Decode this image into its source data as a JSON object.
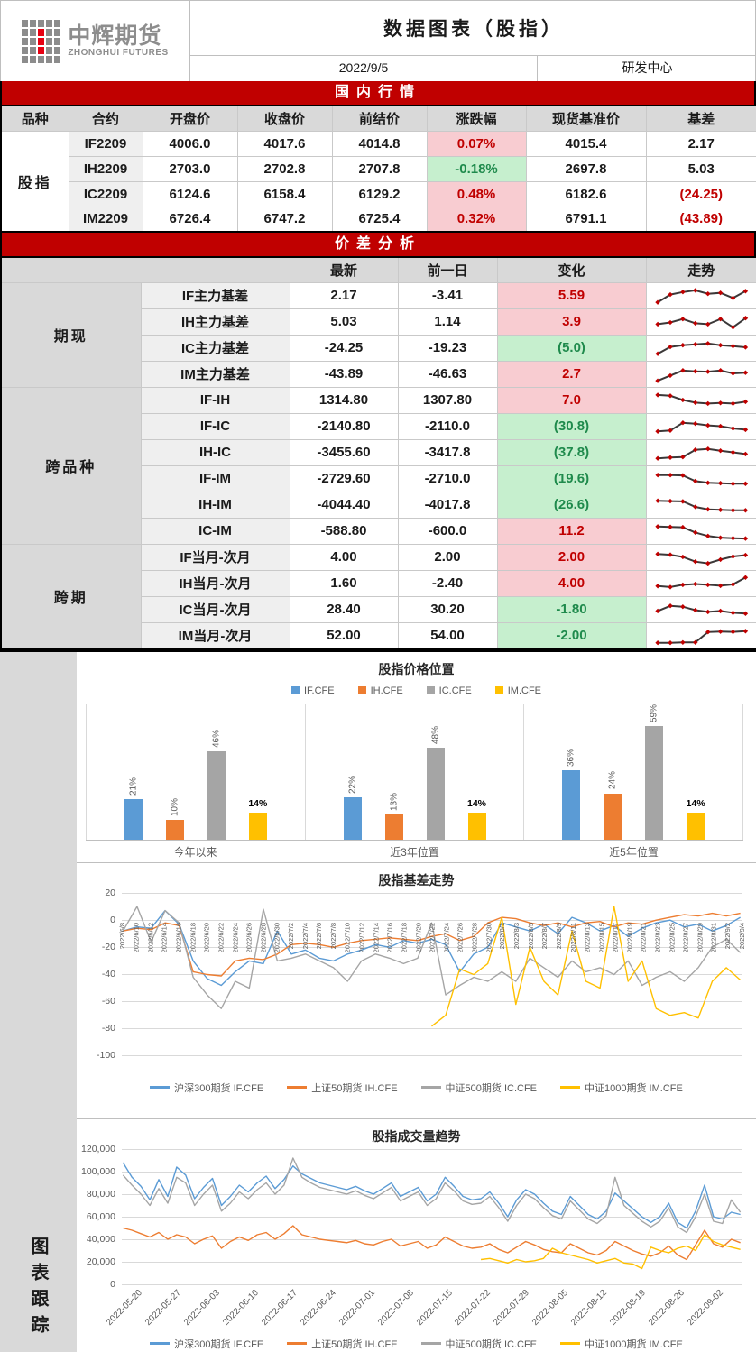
{
  "header": {
    "logo_cn": "中辉期货",
    "logo_en": "ZHONGHUI FUTURES",
    "title": "数据图表（股指）",
    "date": "2022/9/5",
    "dept": "研发中心"
  },
  "market_section": {
    "banner": "国内行情",
    "columns": [
      "品种",
      "合约",
      "开盘价",
      "收盘价",
      "前结价",
      "涨跌幅",
      "现货基准价",
      "基差"
    ],
    "group_label": "股指",
    "rows": [
      {
        "contract": "IF2209",
        "open": "4006.0",
        "close": "4017.6",
        "prev_settle": "4014.8",
        "change_pct": "0.07%",
        "change_dir": "up",
        "spot": "4015.4",
        "basis": "2.17",
        "basis_neg": false
      },
      {
        "contract": "IH2209",
        "open": "2703.0",
        "close": "2702.8",
        "prev_settle": "2707.8",
        "change_pct": "-0.18%",
        "change_dir": "down",
        "spot": "2697.8",
        "basis": "5.03",
        "basis_neg": false
      },
      {
        "contract": "IC2209",
        "open": "6124.6",
        "close": "6158.4",
        "prev_settle": "6129.2",
        "change_pct": "0.48%",
        "change_dir": "up",
        "spot": "6182.6",
        "basis": "(24.25)",
        "basis_neg": true
      },
      {
        "contract": "IM2209",
        "open": "6726.4",
        "close": "6747.2",
        "prev_settle": "6725.4",
        "change_pct": "0.32%",
        "change_dir": "up",
        "spot": "6791.1",
        "basis": "(43.89)",
        "basis_neg": true
      }
    ]
  },
  "spread_section": {
    "banner": "价差分析",
    "columns": [
      "最新",
      "前一日",
      "变化",
      "走势"
    ],
    "groups": [
      {
        "name": "期现",
        "rows": [
          {
            "label": "IF主力基差",
            "latest": "2.17",
            "prev": "-3.41",
            "change": "5.59",
            "dir": "up",
            "spark": [
              15,
              60,
              75,
              85,
              65,
              70,
              40,
              80
            ]
          },
          {
            "label": "IH主力基差",
            "latest": "5.03",
            "prev": "1.14",
            "change": "3.9",
            "dir": "up",
            "spark": [
              40,
              50,
              70,
              45,
              40,
              70,
              22,
              75
            ]
          },
          {
            "label": "IC主力基差",
            "latest": "-24.25",
            "prev": "-19.23",
            "change": "(5.0)",
            "dir": "down",
            "spark": [
              20,
              60,
              70,
              75,
              80,
              70,
              65,
              58
            ]
          },
          {
            "label": "IM主力基差",
            "latest": "-43.89",
            "prev": "-46.63",
            "change": "2.7",
            "dir": "up",
            "spark": [
              15,
              45,
              75,
              70,
              68,
              75,
              58,
              62
            ]
          }
        ]
      },
      {
        "name": "跨品种",
        "rows": [
          {
            "label": "IF-IH",
            "latest": "1314.80",
            "prev": "1307.80",
            "change": "7.0",
            "dir": "up",
            "spark": [
              85,
              80,
              55,
              40,
              35,
              38,
              35,
              45
            ]
          },
          {
            "label": "IF-IC",
            "latest": "-2140.80",
            "prev": "-2110.0",
            "change": "(30.8)",
            "dir": "down",
            "spark": [
              25,
              30,
              75,
              70,
              60,
              55,
              42,
              35
            ]
          },
          {
            "label": "IH-IC",
            "latest": "-3455.60",
            "prev": "-3417.8",
            "change": "(37.8)",
            "dir": "down",
            "spark": [
              20,
              25,
              28,
              70,
              75,
              65,
              55,
              45
            ]
          },
          {
            "label": "IF-IM",
            "latest": "-2729.60",
            "prev": "-2710.0",
            "change": "(19.6)",
            "dir": "down",
            "spark": [
              75,
              75,
              73,
              40,
              30,
              28,
              25,
              25
            ]
          },
          {
            "label": "IH-IM",
            "latest": "-4044.40",
            "prev": "-4017.8",
            "change": "(26.6)",
            "dir": "down",
            "spark": [
              78,
              76,
              74,
              42,
              28,
              25,
              22,
              22
            ]
          },
          {
            "label": "IC-IM",
            "latest": "-588.80",
            "prev": "-600.0",
            "change": "11.2",
            "dir": "up",
            "spark": [
              80,
              78,
              76,
              45,
              25,
              15,
              12,
              10
            ]
          }
        ]
      },
      {
        "name": "跨期",
        "rows": [
          {
            "label": "IF当月-次月",
            "latest": "4.00",
            "prev": "2.00",
            "change": "2.00",
            "dir": "up",
            "spark": [
              72,
              68,
              55,
              28,
              18,
              40,
              58,
              66
            ]
          },
          {
            "label": "IH当月-次月",
            "latest": "1.60",
            "prev": "-2.40",
            "change": "4.00",
            "dir": "up",
            "spark": [
              38,
              32,
              45,
              50,
              45,
              40,
              48,
              88
            ]
          },
          {
            "label": "IC当月-次月",
            "latest": "28.40",
            "prev": "30.20",
            "change": "-1.80",
            "dir": "down",
            "spark": [
              45,
              75,
              70,
              50,
              40,
              45,
              35,
              30
            ]
          },
          {
            "label": "IM当月-次月",
            "latest": "52.00",
            "prev": "54.00",
            "change": "-2.00",
            "dir": "down",
            "spark": [
              12,
              12,
              14,
              14,
              75,
              78,
              76,
              80
            ]
          }
        ]
      }
    ]
  },
  "charts_sidebar": "图表跟踪",
  "colors": {
    "banner_bg": "#C00000",
    "up_bg": "#F8CCD1",
    "up_text": "#C00000",
    "down_bg": "#C6EFCE",
    "down_text": "#1F8A4C",
    "header_bg": "#D9D9D9",
    "label_bg": "#EFEFEF",
    "spark_line": "#3B3838",
    "spark_marker": "#C00000",
    "series_blue": "#5B9BD5",
    "series_orange": "#ED7D31",
    "series_gray": "#A5A5A5",
    "series_yellow": "#FFC000"
  },
  "chart_data": [
    {
      "type": "bar",
      "title": "股指价格位置",
      "categories": [
        "今年以来",
        "近3年位置",
        "近5年位置"
      ],
      "series": [
        {
          "name": "IF.CFE",
          "color": "#5B9BD5",
          "values": [
            21,
            22,
            36
          ],
          "label_rotated": true
        },
        {
          "name": "IH.CFE",
          "color": "#ED7D31",
          "values": [
            10,
            13,
            24
          ],
          "label_rotated": true
        },
        {
          "name": "IC.CFE",
          "color": "#A5A5A5",
          "values": [
            46,
            48,
            59
          ],
          "label_rotated": true
        },
        {
          "name": "IM.CFE",
          "color": "#FFC000",
          "values": [
            14,
            14,
            14
          ],
          "label_rotated": false
        }
      ],
      "value_format": "percent",
      "ylim": [
        0,
        65
      ],
      "grid": "panel-separators",
      "legend_position": "top"
    },
    {
      "type": "line",
      "title": "股指基差走势",
      "x": [
        "2022/6/8",
        "2022/6/10",
        "2022/6/12",
        "2022/6/14",
        "2022/6/16",
        "2022/6/18",
        "2022/6/20",
        "2022/6/22",
        "2022/6/24",
        "2022/6/26",
        "2022/6/28",
        "2022/6/30",
        "2022/7/2",
        "2022/7/4",
        "2022/7/6",
        "2022/7/8",
        "2022/7/10",
        "2022/7/12",
        "2022/7/14",
        "2022/7/16",
        "2022/7/18",
        "2022/7/20",
        "2022/7/22",
        "2022/7/24",
        "2022/7/26",
        "2022/7/28",
        "2022/7/30",
        "2022/8/1",
        "2022/8/3",
        "2022/8/5",
        "2022/8/7",
        "2022/8/9",
        "2022/8/11",
        "2022/8/13",
        "2022/8/15",
        "2022/8/17",
        "2022/8/19",
        "2022/8/21",
        "2022/8/23",
        "2022/8/25",
        "2022/8/27",
        "2022/8/29",
        "2022/8/31",
        "2022/9/2",
        "2022/9/4"
      ],
      "yticks": [
        20,
        0,
        -20,
        -40,
        -60,
        -80,
        -100
      ],
      "ylim": [
        -110,
        20
      ],
      "grid": "horizontal",
      "legend_position": "bottom",
      "series": [
        {
          "name": "沪深300期货 IF.CFE",
          "color": "#5B9BD5",
          "values": [
            -8,
            -5,
            -6,
            7,
            -3,
            -30,
            -43,
            -48,
            -38,
            -30,
            -32,
            -8,
            -25,
            -22,
            -28,
            -30,
            -25,
            -22,
            -18,
            -20,
            -15,
            -17,
            -14,
            -18,
            -38,
            -25,
            -20,
            -2,
            -5,
            -8,
            -3,
            -10,
            2,
            -2,
            -8,
            -4,
            -12,
            -6,
            -2,
            0,
            -5,
            -3,
            -8,
            -4,
            2
          ]
        },
        {
          "name": "上证50期货 IH.CFE",
          "color": "#ED7D31",
          "values": [
            -8,
            -6,
            -7,
            -2,
            -4,
            -38,
            -40,
            -41,
            -30,
            -28,
            -29,
            -25,
            -18,
            -17,
            -18,
            -20,
            -17,
            -15,
            -14,
            -13,
            -14,
            -15,
            -12,
            -10,
            -15,
            -12,
            -2,
            2,
            1,
            -2,
            -4,
            -2,
            -5,
            -2,
            -1,
            -5,
            -2,
            -3,
            0,
            2,
            4,
            3,
            5,
            3,
            5
          ]
        },
        {
          "name": "中证500期货 IC.CFE",
          "color": "#A5A5A5",
          "values": [
            -8,
            10,
            -16,
            7,
            -2,
            -42,
            -55,
            -65,
            -45,
            -50,
            8,
            -30,
            -28,
            -25,
            -30,
            -35,
            -45,
            -30,
            -25,
            -28,
            -32,
            -28,
            -2,
            -55,
            -48,
            -42,
            -45,
            -38,
            -45,
            -28,
            -35,
            -42,
            -30,
            -38,
            -35,
            -40,
            -30,
            -48,
            -42,
            -38,
            -45,
            -35,
            -20,
            -14,
            -24
          ]
        },
        {
          "name": "中证1000期货 IM.CFE",
          "color": "#FFC000",
          "values": [
            null,
            null,
            null,
            null,
            null,
            null,
            null,
            null,
            null,
            null,
            null,
            null,
            null,
            null,
            null,
            null,
            null,
            null,
            null,
            null,
            null,
            null,
            -78,
            -70,
            -36,
            -40,
            -32,
            2,
            -62,
            -20,
            -45,
            -55,
            -8,
            -45,
            -50,
            10,
            -45,
            -30,
            -65,
            -70,
            -68,
            -72,
            -45,
            -35,
            -44
          ]
        }
      ]
    },
    {
      "type": "line",
      "title": "股指成交量趋势",
      "x_labels": [
        "2022-05-20",
        "2022-05-27",
        "2022-06-03",
        "2022-06-10",
        "2022-06-17",
        "2022-06-24",
        "2022-07-01",
        "2022-07-08",
        "2022-07-15",
        "2022-07-22",
        "2022-07-29",
        "2022-08-05",
        "2022-08-12",
        "2022-08-19",
        "2022-08-26",
        "2022-09-02"
      ],
      "yticks": [
        0,
        20,
        40,
        60,
        80,
        100,
        120
      ],
      "ytick_labels": [
        "0",
        "20,000",
        "40,000",
        "60,000",
        "80,000",
        "100,000",
        "120,000"
      ],
      "ylim": [
        0,
        120
      ],
      "values_scale": 1000,
      "grid": "horizontal",
      "legend_position": "bottom",
      "series": [
        {
          "name": "沪深300期货 IF.CFE",
          "color": "#5B9BD5",
          "values": [
            108,
            95,
            87,
            75,
            93,
            78,
            104,
            97,
            76,
            86,
            94,
            70,
            78,
            88,
            82,
            90,
            96,
            85,
            93,
            105,
            98,
            94,
            90,
            88,
            86,
            84,
            87,
            83,
            80,
            85,
            90,
            78,
            82,
            86,
            74,
            80,
            95,
            87,
            78,
            75,
            76,
            82,
            72,
            60,
            75,
            84,
            80,
            72,
            65,
            62,
            78,
            70,
            62,
            58,
            65,
            81,
            74,
            67,
            60,
            55,
            60,
            72,
            55,
            50,
            65,
            88,
            60,
            58,
            64,
            62
          ]
        },
        {
          "name": "上证50期货 IH.CFE",
          "color": "#ED7D31",
          "values": [
            50,
            48,
            45,
            42,
            46,
            40,
            44,
            42,
            36,
            40,
            43,
            32,
            38,
            42,
            39,
            44,
            46,
            40,
            45,
            52,
            44,
            42,
            40,
            39,
            38,
            37,
            39,
            36,
            35,
            38,
            40,
            34,
            36,
            38,
            32,
            35,
            42,
            38,
            34,
            32,
            33,
            36,
            31,
            28,
            33,
            38,
            35,
            31,
            29,
            28,
            36,
            32,
            28,
            26,
            30,
            38,
            34,
            30,
            27,
            25,
            28,
            34,
            26,
            22,
            35,
            48,
            36,
            33,
            40,
            37
          ]
        },
        {
          "name": "中证500期货 IC.CFE",
          "color": "#A5A5A5",
          "values": [
            97,
            88,
            80,
            70,
            85,
            72,
            95,
            90,
            70,
            80,
            88,
            65,
            72,
            82,
            76,
            84,
            90,
            80,
            88,
            112,
            95,
            90,
            86,
            84,
            82,
            80,
            83,
            79,
            76,
            81,
            86,
            74,
            78,
            82,
            70,
            76,
            90,
            83,
            74,
            71,
            72,
            78,
            68,
            56,
            70,
            80,
            76,
            68,
            61,
            58,
            74,
            66,
            58,
            54,
            61,
            95,
            70,
            63,
            56,
            51,
            56,
            68,
            51,
            46,
            60,
            80,
            56,
            54,
            75,
            64
          ]
        },
        {
          "name": "中证1000期货 IM.CFE",
          "color": "#FFC000",
          "values": [
            null,
            null,
            null,
            null,
            null,
            null,
            null,
            null,
            null,
            null,
            null,
            null,
            null,
            null,
            null,
            null,
            null,
            null,
            null,
            null,
            null,
            null,
            null,
            null,
            null,
            null,
            null,
            null,
            null,
            null,
            null,
            null,
            null,
            null,
            null,
            null,
            null,
            null,
            null,
            null,
            22,
            23,
            21,
            19,
            22,
            20,
            21,
            23,
            32,
            28,
            26,
            24,
            22,
            19,
            21,
            23,
            19,
            18,
            14,
            33,
            30,
            28,
            32,
            34,
            30,
            44,
            38,
            35,
            33,
            31
          ]
        }
      ]
    }
  ]
}
